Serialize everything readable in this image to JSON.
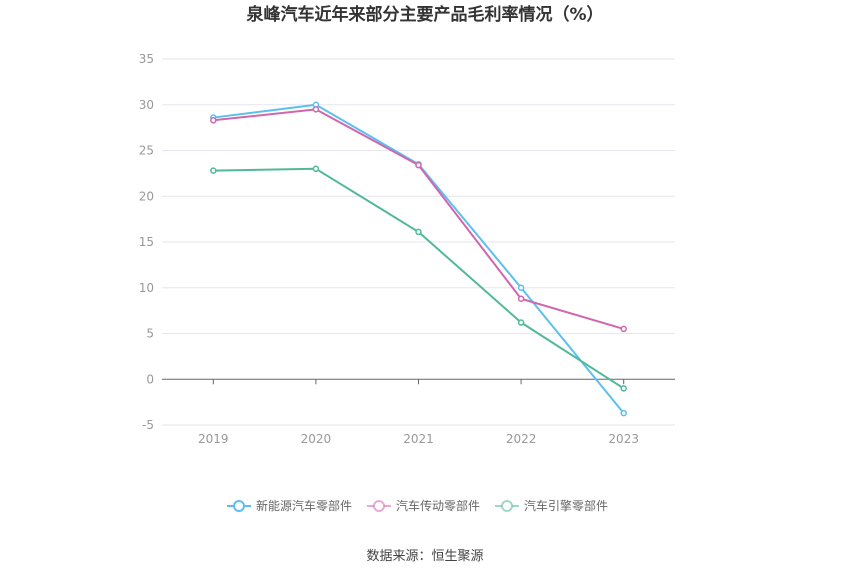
{
  "chart_data": {
    "type": "line",
    "title": "泉峰汽车近年来部分主要产品毛利率情况（%）",
    "categories": [
      "2019",
      "2020",
      "2021",
      "2022",
      "2023"
    ],
    "series": [
      {
        "name": "新能源汽车零部件",
        "color": "#5bc0f0",
        "values": [
          28.6,
          30.0,
          23.5,
          10.0,
          -3.7
        ]
      },
      {
        "name": "汽车传动零部件",
        "color": "#d066ad",
        "values": [
          28.3,
          29.5,
          23.4,
          8.8,
          5.5
        ]
      },
      {
        "name": "汽车引擎零部件",
        "color": "#52b89a",
        "values": [
          22.8,
          23.0,
          16.1,
          6.2,
          -1.0
        ]
      }
    ],
    "ylim": [
      -5,
      35
    ],
    "yticks": [
      "35",
      "30",
      "25",
      "20",
      "15",
      "10",
      "5",
      "0",
      "-5"
    ],
    "xlabel": "",
    "ylabel": "",
    "grid": true,
    "legend_position": "bottom"
  },
  "footer": {
    "source": "数据来源：恒生聚源"
  }
}
